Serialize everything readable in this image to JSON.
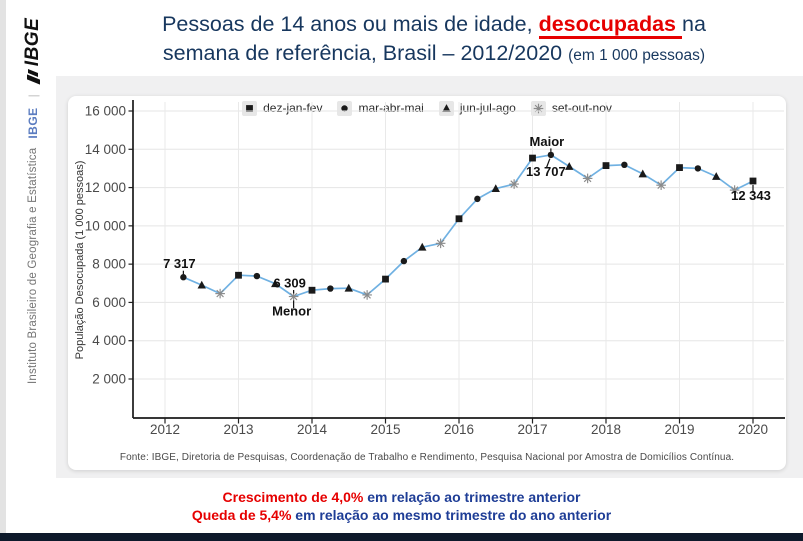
{
  "sidebar": {
    "logo_text": "IBGE",
    "org_abbr": "IBGE",
    "org_name": "Instituto Brasileiro de Geografia e Estatística",
    "divider": "|"
  },
  "header": {
    "title_pre": "Pessoas de 14 anos ou mais de idade, ",
    "title_highlight": "desocupadas ",
    "title_post": "na",
    "title_line2": "semana de referência,  Brasil – 2012/2020 ",
    "title_unit": "(em 1 000 pessoas)"
  },
  "chart_data": {
    "type": "line",
    "title": "Pessoas de 14 anos ou mais de idade, desocupadas na semana de referência, Brasil – 2012/2020 (em 1 000 pessoas)",
    "ylabel": "População Desocupada (1 000 pessoas)",
    "xlabel": "",
    "ylim": [
      0,
      16400
    ],
    "grid": true,
    "legend_position": "top",
    "yticks": [
      2000,
      4000,
      6000,
      8000,
      10000,
      12000,
      14000,
      16000
    ],
    "ytick_labels": [
      "2 000",
      "4 000",
      "6 000",
      "8 000",
      "10 000",
      "12 000",
      "14 000",
      "16 000"
    ],
    "years": [
      "2012",
      "2013",
      "2014",
      "2015",
      "2016",
      "2017",
      "2018",
      "2019",
      "2020"
    ],
    "legend": [
      {
        "marker": "square",
        "label": "dez-jan-fev"
      },
      {
        "marker": "circle",
        "label": "mar-abr-mai"
      },
      {
        "marker": "triangle",
        "label": "jun-jul-ago"
      },
      {
        "marker": "asterisk",
        "label": "set-out-nov"
      }
    ],
    "series": [
      {
        "name": "População desocupada (1 000 pessoas)",
        "points": [
          {
            "period": "mar-abr-mai 2012",
            "marker": "circle",
            "value": 7317
          },
          {
            "period": "jun-jul-ago 2012",
            "marker": "triangle",
            "value": 6904
          },
          {
            "period": "set-out-nov 2012",
            "marker": "asterisk",
            "value": 6461
          },
          {
            "period": "dez-jan-fev 2013",
            "marker": "square",
            "value": 7420
          },
          {
            "period": "mar-abr-mai 2013",
            "marker": "circle",
            "value": 7377
          },
          {
            "period": "jun-jul-ago 2013",
            "marker": "triangle",
            "value": 6977
          },
          {
            "period": "set-out-nov 2013",
            "marker": "asterisk",
            "value": 6309
          },
          {
            "period": "dez-jan-fev 2014",
            "marker": "square",
            "value": 6637
          },
          {
            "period": "mar-abr-mai 2014",
            "marker": "circle",
            "value": 6725
          },
          {
            "period": "jun-jul-ago 2014",
            "marker": "triangle",
            "value": 6744
          },
          {
            "period": "set-out-nov 2014",
            "marker": "asterisk",
            "value": 6391
          },
          {
            "period": "dez-jan-fev 2015",
            "marker": "square",
            "value": 7219
          },
          {
            "period": "mar-abr-mai 2015",
            "marker": "circle",
            "value": 8160
          },
          {
            "period": "jun-jul-ago 2015",
            "marker": "triangle",
            "value": 8887
          },
          {
            "period": "set-out-nov 2015",
            "marker": "asterisk",
            "value": 9087
          },
          {
            "period": "dez-jan-fev 2016",
            "marker": "square",
            "value": 10371
          },
          {
            "period": "mar-abr-mai 2016",
            "marker": "circle",
            "value": 11409
          },
          {
            "period": "jun-jul-ago 2016",
            "marker": "triangle",
            "value": 11945
          },
          {
            "period": "set-out-nov 2016",
            "marker": "asterisk",
            "value": 12183
          },
          {
            "period": "dez-jan-fev 2017",
            "marker": "square",
            "value": 13541
          },
          {
            "period": "mar-abr-mai 2017",
            "marker": "circle",
            "value": 13707
          },
          {
            "period": "jun-jul-ago 2017",
            "marker": "triangle",
            "value": 13101
          },
          {
            "period": "set-out-nov 2017",
            "marker": "asterisk",
            "value": 12479
          },
          {
            "period": "dez-jan-fev 2018",
            "marker": "square",
            "value": 13148
          },
          {
            "period": "mar-abr-mai 2018",
            "marker": "circle",
            "value": 13189
          },
          {
            "period": "jun-jul-ago 2018",
            "marker": "triangle",
            "value": 12713
          },
          {
            "period": "set-out-nov 2018",
            "marker": "asterisk",
            "value": 12124
          },
          {
            "period": "dez-jan-fev 2019",
            "marker": "square",
            "value": 13044
          },
          {
            "period": "mar-abr-mai 2019",
            "marker": "circle",
            "value": 13002
          },
          {
            "period": "jun-jul-ago 2019",
            "marker": "triangle",
            "value": 12578
          },
          {
            "period": "set-out-nov 2019",
            "marker": "asterisk",
            "value": 11868
          },
          {
            "period": "dez-jan-fev 2020",
            "marker": "square",
            "value": 12343
          }
        ]
      }
    ],
    "annotations": [
      {
        "point": 0,
        "text": "7 317",
        "placement": "above"
      },
      {
        "point": 6,
        "text": "6 309",
        "placement": "above"
      },
      {
        "point": 6,
        "text": "Menor",
        "placement": "below"
      },
      {
        "point": 20,
        "text": "Maior",
        "placement": "above"
      },
      {
        "point": 20,
        "text": "13 707",
        "placement": "below-left"
      },
      {
        "point": 31,
        "text": "12 343",
        "placement": "below"
      }
    ]
  },
  "source": "Fonte: IBGE, Diretoria de Pesquisas, Coordenação de Trabalho e Rendimento, Pesquisa Nacional por Amostra de Domicílios Contínua.",
  "footer": {
    "line1_highlight": "Crescimento de 4,0%",
    "line1_rest": " em relação ao trimestre anterior",
    "line2_highlight": "Queda de 5,4%",
    "line2_rest": " em relação ao mesmo trimestre do ano anterior"
  },
  "colors": {
    "title_navy": "#17375e",
    "accent_red": "#e60000",
    "footer_navy": "#1e3d96",
    "line_blue": "#70b1e2",
    "marker_black": "#1a1a1a",
    "asterisk_gray": "#8b8b8b",
    "grid_gray": "#e6e6e6",
    "stage_gray": "#f0f0f1",
    "bottom_bar": "#0e1a2b"
  }
}
